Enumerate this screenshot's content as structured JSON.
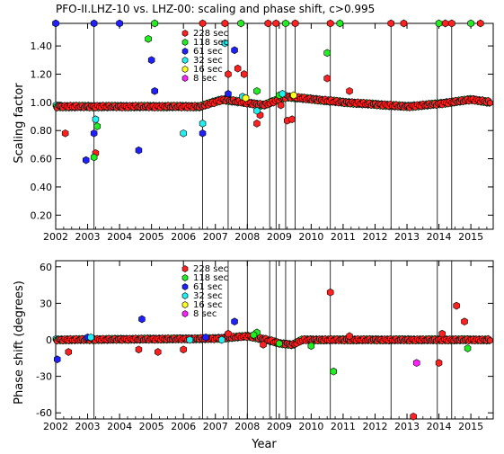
{
  "chart_data": [
    {
      "type": "scatter",
      "title": "PFO-II.LHZ-10 vs. LHZ-00: scaling and phase shift, c>0.995",
      "xlabel": "",
      "ylabel": "Scaling factor",
      "xlim": [
        2002.0,
        2015.7
      ],
      "ylim": [
        0.1,
        1.56
      ],
      "xticks": [
        2002,
        2003,
        2004,
        2005,
        2006,
        2007,
        2008,
        2009,
        2010,
        2011,
        2012,
        2013,
        2014,
        2015
      ],
      "yticks": [
        0.2,
        0.4,
        0.6,
        0.8,
        1.0,
        1.2,
        1.4
      ],
      "ytick_labels": [
        "0.20",
        "0.40",
        "0.60",
        "0.80",
        "1.00",
        "1.20",
        "1.40"
      ],
      "event_lines": [
        2003.2,
        2006.6,
        2007.4,
        2008.0,
        2008.7,
        2008.9,
        2009.2,
        2009.5,
        2010.6,
        2012.5,
        2013.95,
        2014.4
      ],
      "legend": {
        "position": "top-center"
      },
      "series": [
        {
          "name": "228 sec",
          "color": "#ff2020",
          "x": [
            2002.3,
            2003.25,
            2007.4,
            2007.7,
            2007.9,
            2008.3,
            2008.4,
            2009.05,
            2009.25,
            2009.4,
            2010.5,
            2011.2
          ],
          "y": [
            0.78,
            0.64,
            1.2,
            1.24,
            1.2,
            0.85,
            0.91,
            0.98,
            0.87,
            0.88,
            1.17,
            1.08
          ]
        },
        {
          "name": "118 sec",
          "color": "#20ee20",
          "x": [
            2003.2,
            2003.3,
            2004.9,
            2008.3,
            2009.0,
            2010.5
          ],
          "y": [
            0.61,
            0.83,
            1.45,
            1.08,
            1.05,
            1.35
          ]
        },
        {
          "name": "61 sec",
          "color": "#2020ff",
          "x": [
            2002.95,
            2003.2,
            2004.6,
            2005.0,
            2005.1,
            2006.6,
            2007.4,
            2007.6
          ],
          "y": [
            0.59,
            0.78,
            0.66,
            1.3,
            1.08,
            0.78,
            1.06,
            1.37
          ]
        },
        {
          "name": "32 sec",
          "color": "#20f0f0",
          "x": [
            2003.25,
            2006.0,
            2006.6,
            2007.3,
            2007.85,
            2008.3,
            2009.1
          ],
          "y": [
            0.88,
            0.78,
            0.85,
            1.42,
            1.04,
            0.94,
            1.06
          ]
        },
        {
          "name": "16 sec",
          "color": "#ffff20",
          "x": [
            2009.45,
            2007.95
          ],
          "y": [
            1.05,
            1.03
          ]
        },
        {
          "name": "8 sec",
          "color": "#ff20ff",
          "x": [],
          "y": []
        }
      ],
      "baseline": {
        "y": 0.98,
        "x_start": 2002.0,
        "x_end": 2015.6,
        "note_values": [
          [
            2002.0,
            0.97
          ],
          [
            2006.5,
            0.97
          ],
          [
            2007.2,
            1.02
          ],
          [
            2008.5,
            0.98
          ],
          [
            2009.2,
            1.04
          ],
          [
            2011.0,
            1.0
          ],
          [
            2013.0,
            0.97
          ],
          [
            2014.0,
            0.99
          ],
          [
            2015.0,
            1.02
          ],
          [
            2015.6,
            1.0
          ]
        ]
      },
      "offscale_markers_top": [
        2002.0,
        2003.2,
        2004.0,
        2005.1,
        2006.6,
        2007.3,
        2007.8,
        2008.65,
        2008.9,
        2009.2,
        2009.5,
        2010.6,
        2010.9,
        2012.5,
        2012.9,
        2014.0,
        2014.2,
        2014.4,
        2015.0,
        2015.3
      ]
    },
    {
      "type": "scatter",
      "title": "",
      "xlabel": "Year",
      "ylabel": "Phase shift (degrees)",
      "xlim": [
        2002.0,
        2015.7
      ],
      "ylim": [
        -65,
        65
      ],
      "xticks": [
        2002,
        2003,
        2004,
        2005,
        2006,
        2007,
        2008,
        2009,
        2010,
        2011,
        2012,
        2013,
        2014,
        2015
      ],
      "yticks": [
        -60,
        -30,
        0,
        30,
        60
      ],
      "ytick_labels": [
        "-60",
        "-30",
        "0",
        "30",
        "60"
      ],
      "event_lines": [
        2003.2,
        2006.6,
        2007.4,
        2008.0,
        2008.7,
        2008.9,
        2009.2,
        2009.5,
        2010.6,
        2012.5,
        2013.95,
        2014.4
      ],
      "legend": {
        "position": "top-center"
      },
      "series": [
        {
          "name": "228 sec",
          "color": "#ff2020",
          "x": [
            2002.4,
            2004.6,
            2005.2,
            2006.0,
            2007.4,
            2008.5,
            2010.6,
            2011.2,
            2013.2,
            2014.0,
            2014.1,
            2014.55,
            2014.8
          ],
          "y": [
            -10,
            -8,
            -10,
            -8,
            5,
            -4,
            39,
            3,
            -63,
            -19,
            5,
            28,
            15
          ]
        },
        {
          "name": "118 sec",
          "color": "#20ee20",
          "x": [
            2008.3,
            2008.2,
            2009.0,
            2010.0,
            2010.7,
            2014.9
          ],
          "y": [
            6,
            4,
            -3,
            -5,
            -26,
            -7
          ]
        },
        {
          "name": "61 sec",
          "color": "#2020ff",
          "x": [
            2002.05,
            2003.0,
            2004.7,
            2006.7,
            2007.6
          ],
          "y": [
            -16,
            2,
            17,
            2,
            15
          ]
        },
        {
          "name": "32 sec",
          "color": "#20f0f0",
          "x": [
            2003.1,
            2006.2,
            2007.2
          ],
          "y": [
            2,
            0,
            0
          ]
        },
        {
          "name": "16 sec",
          "color": "#ffff20",
          "x": [],
          "y": []
        },
        {
          "name": "8 sec",
          "color": "#ff20ff",
          "x": [
            2013.3
          ],
          "y": [
            -19
          ]
        }
      ],
      "baseline": {
        "y": 0,
        "x_start": 2002.0,
        "x_end": 2015.6,
        "note_values": [
          [
            2002.0,
            0
          ],
          [
            2007.0,
            1
          ],
          [
            2008.0,
            3
          ],
          [
            2008.6,
            0
          ],
          [
            2009.0,
            -3
          ],
          [
            2009.4,
            -4
          ],
          [
            2009.7,
            0
          ],
          [
            2015.6,
            0
          ]
        ]
      }
    }
  ]
}
